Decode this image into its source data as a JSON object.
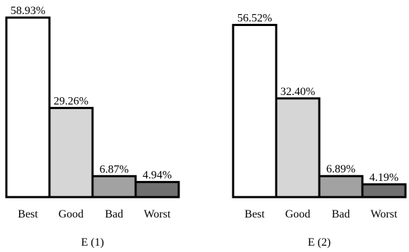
{
  "chart_data": [
    {
      "type": "bar",
      "title": "E (1)",
      "categories": [
        "Best",
        "Good",
        "Bad",
        "Worst"
      ],
      "values": [
        58.93,
        29.26,
        6.87,
        4.94
      ],
      "value_labels": [
        "58.93%",
        "29.26%",
        "6.87%",
        "4.94%"
      ],
      "colors": [
        "#ffffff",
        "#d6d6d6",
        "#a2a2a2",
        "#707070"
      ],
      "ylim": [
        0,
        58.93
      ],
      "grid": false,
      "legend": "none"
    },
    {
      "type": "bar",
      "title": "E (2)",
      "categories": [
        "Best",
        "Good",
        "Bad",
        "Worst"
      ],
      "values": [
        56.52,
        32.4,
        6.89,
        4.19
      ],
      "value_labels": [
        "56.52%",
        "32.40%",
        "6.89%",
        "4.19%"
      ],
      "colors": [
        "#ffffff",
        "#d6d6d6",
        "#a2a2a2",
        "#707070"
      ],
      "ylim": [
        0,
        58.93
      ],
      "grid": false,
      "legend": "none"
    }
  ]
}
